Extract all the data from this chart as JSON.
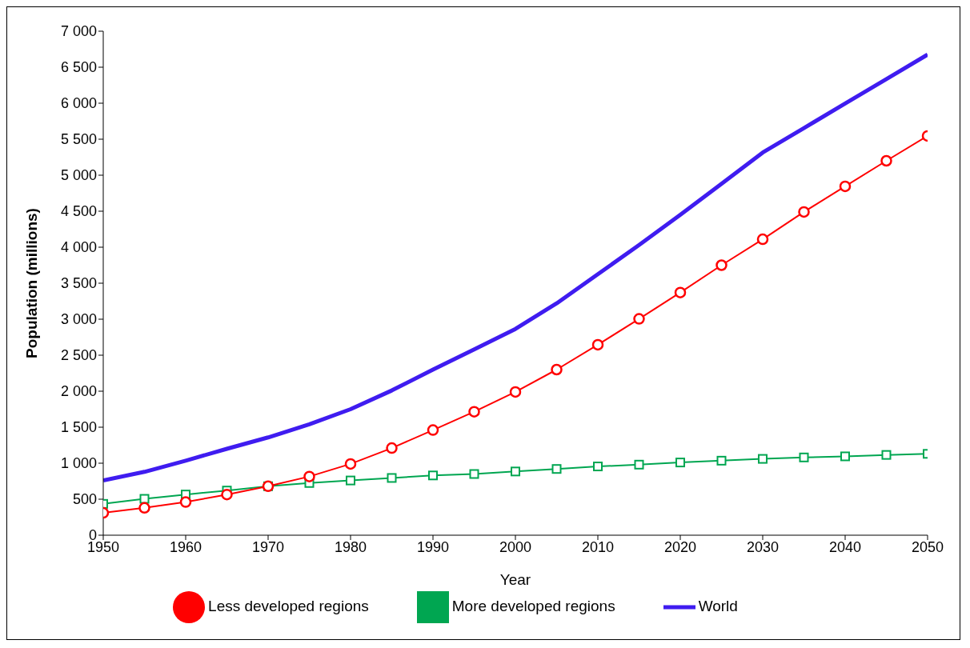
{
  "chart_data": {
    "type": "line",
    "xlabel": "Year",
    "ylabel": "Population (millions)",
    "x": [
      1950,
      1955,
      1960,
      1965,
      1970,
      1975,
      1980,
      1985,
      1990,
      1995,
      2000,
      2005,
      2010,
      2015,
      2020,
      2025,
      2030,
      2035,
      2040,
      2045,
      2050
    ],
    "series": [
      {
        "name": "World",
        "color": "#3f1cf0",
        "marker": "none",
        "values": [
          760,
          880,
          1035,
          1200,
          1358,
          1540,
          1750,
          2010,
          2300,
          2580,
          2865,
          3220,
          3625,
          4030,
          4450,
          4880,
          5315,
          5655,
          5995,
          6335,
          6675
        ]
      },
      {
        "name": "More developed regions",
        "color": "#00a651",
        "marker": "square",
        "values": [
          435,
          505,
          565,
          620,
          680,
          725,
          760,
          795,
          830,
          850,
          885,
          920,
          955,
          980,
          1010,
          1035,
          1060,
          1080,
          1095,
          1115,
          1130
        ]
      },
      {
        "name": "Less developed regions",
        "color": "#ff0000",
        "marker": "circle",
        "values": [
          310,
          380,
          460,
          565,
          680,
          815,
          990,
          1210,
          1460,
          1715,
          1990,
          2300,
          2645,
          3005,
          3370,
          3750,
          4110,
          4490,
          4845,
          5200,
          5545
        ]
      }
    ],
    "xlim": [
      1950,
      2050
    ],
    "xticks": [
      1950,
      1960,
      1970,
      1980,
      1990,
      2000,
      2010,
      2020,
      2030,
      2040,
      2050
    ],
    "ylim": [
      0,
      7000
    ],
    "yticks": [
      0,
      500,
      {
        "value": 1000,
        "label": "1 000"
      },
      {
        "value": 1500,
        "label": "1 500"
      },
      {
        "value": 2000,
        "label": "2 000"
      },
      {
        "value": 2500,
        "label": "2 500"
      },
      {
        "value": 3000,
        "label": "3 000"
      },
      {
        "value": 3500,
        "label": "3 500"
      },
      {
        "value": 4000,
        "label": "4 000"
      },
      {
        "value": 4500,
        "label": "4 500"
      },
      {
        "value": 5000,
        "label": "5 000"
      },
      {
        "value": 5500,
        "label": "5 500"
      },
      {
        "value": 6000,
        "label": "6 000"
      },
      {
        "value": 6500,
        "label": "6 500"
      },
      {
        "value": 7000,
        "label": "7 000"
      }
    ],
    "grid": false,
    "legend": "bottom"
  }
}
